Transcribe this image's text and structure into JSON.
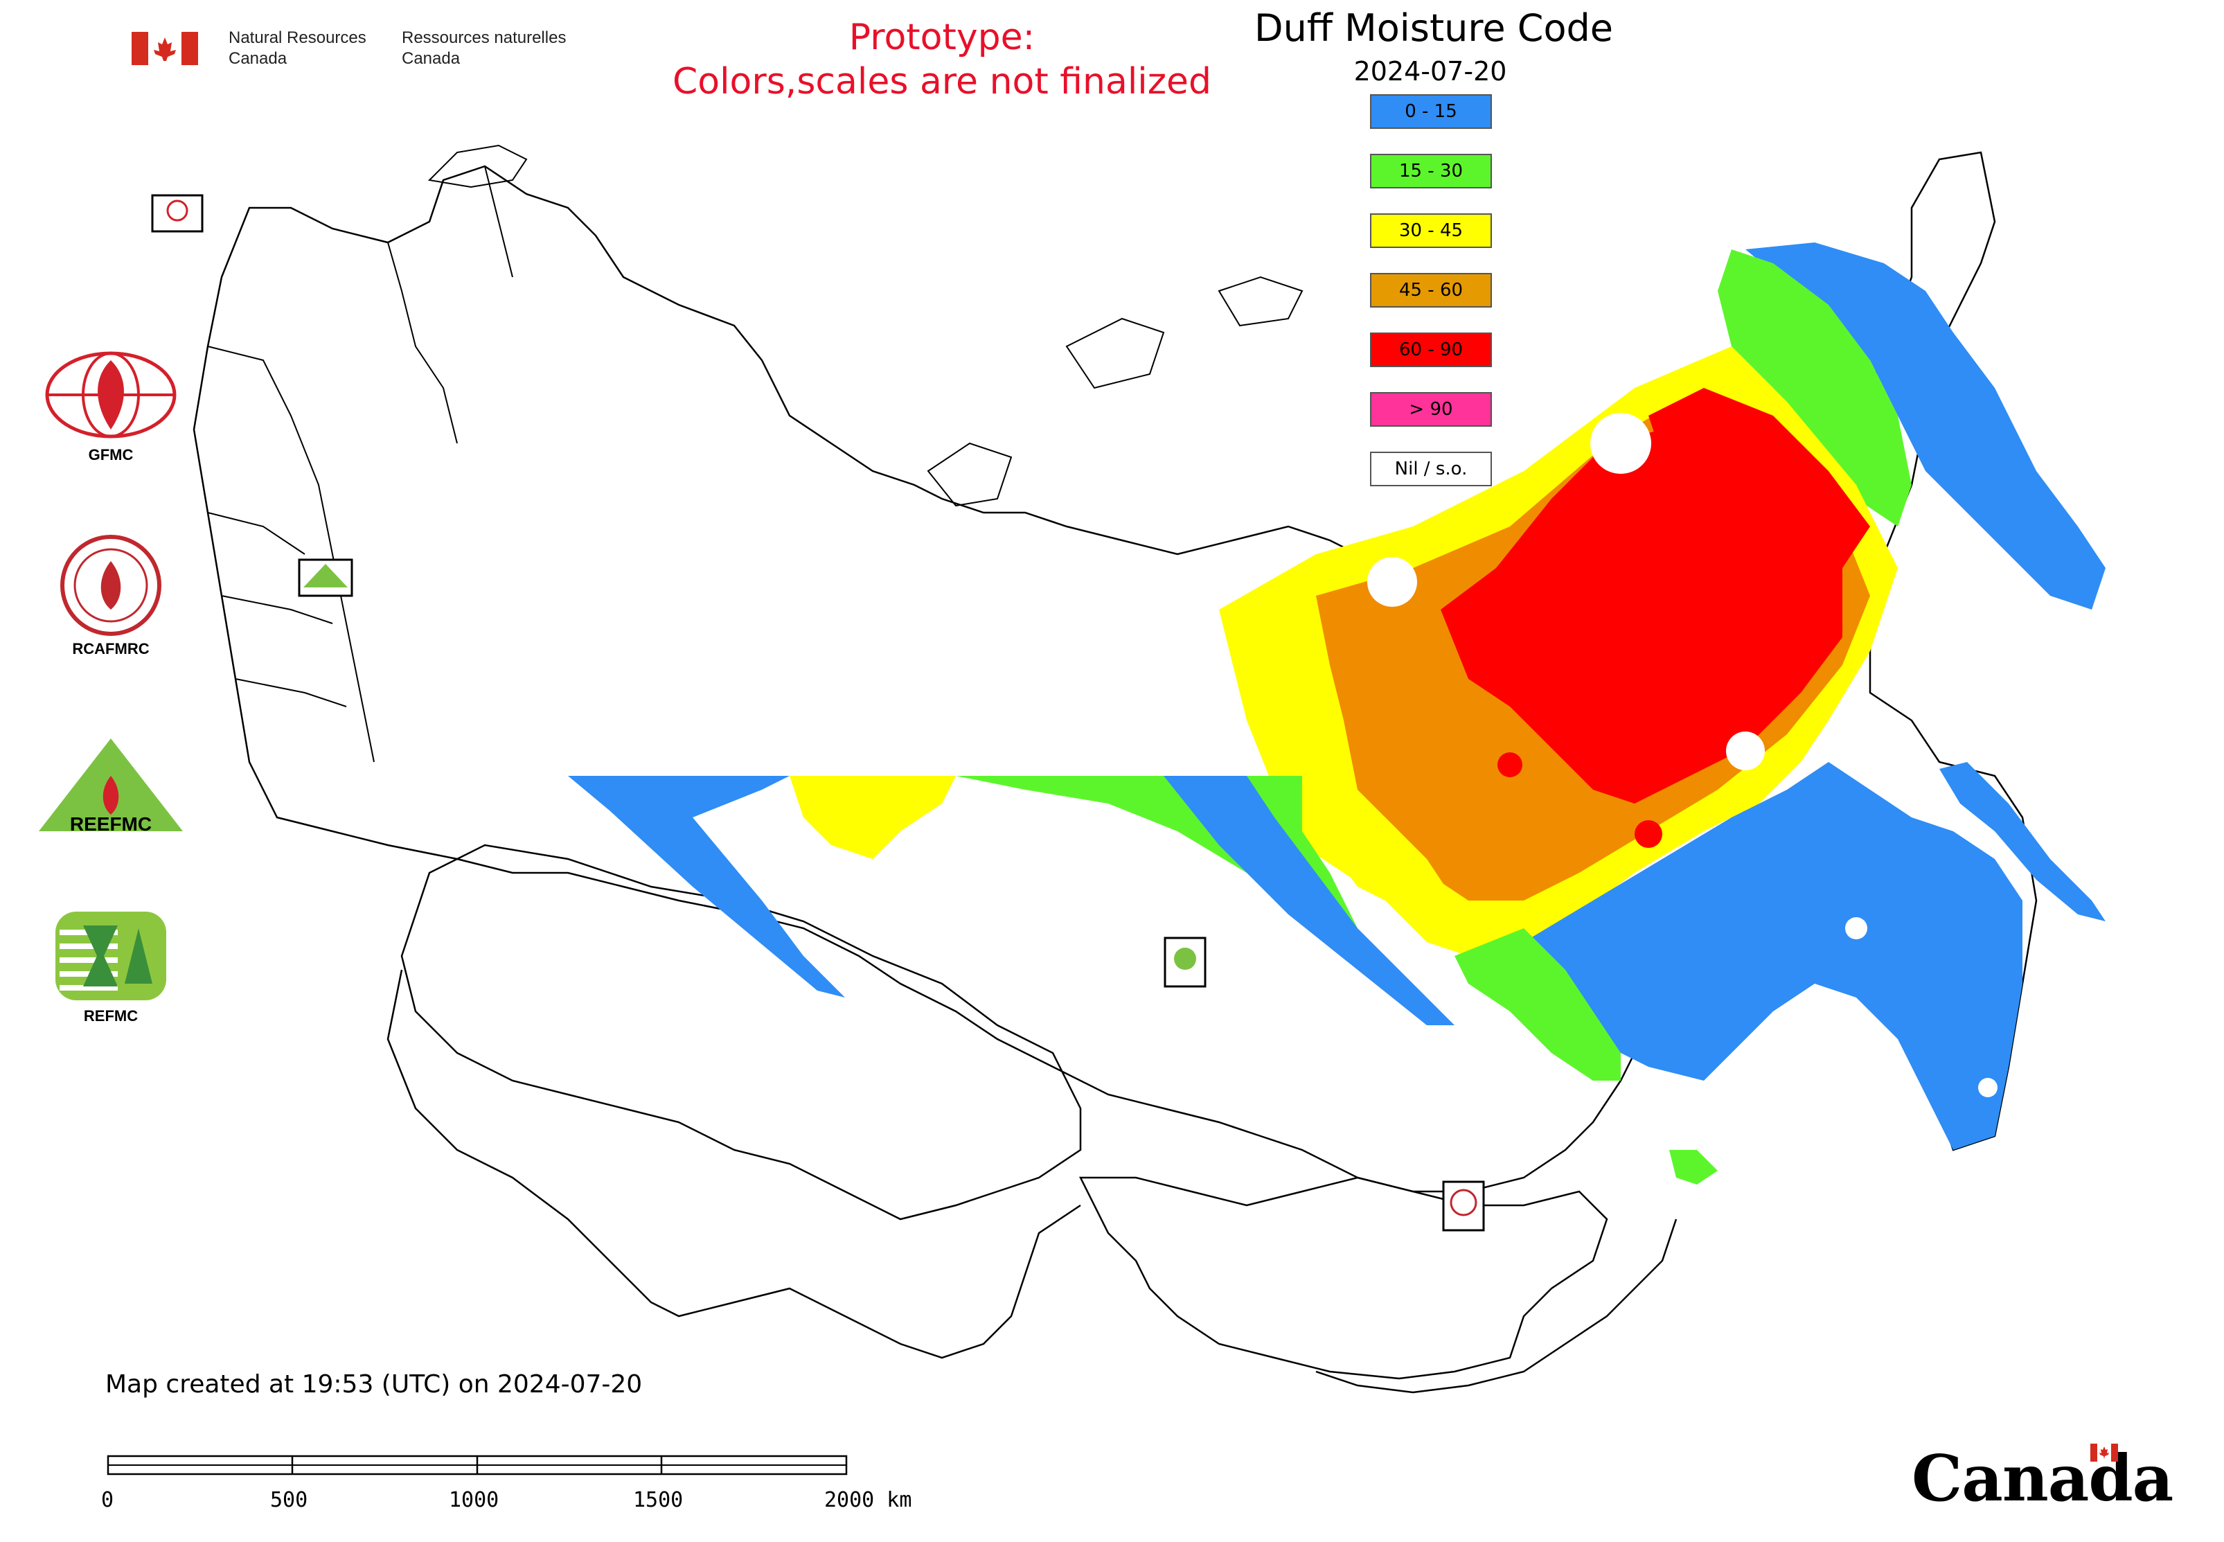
{
  "header": {
    "dept_en_line1": "Natural Resources",
    "dept_en_line2": "Canada",
    "dept_fr_line1": "Ressources naturelles",
    "dept_fr_line2": "Canada",
    "prototype_line1": "Prototype:",
    "prototype_line2": "Colors,scales are not finalized"
  },
  "map": {
    "title": "Duff Moisture Code",
    "date": "2024-07-20"
  },
  "legend": {
    "items": [
      {
        "label": "0 - 15",
        "color": "#2f8df5"
      },
      {
        "label": "15 - 30",
        "color": "#5cf52c"
      },
      {
        "label": "30 - 45",
        "color": "#ffff00"
      },
      {
        "label": "45 - 60",
        "color": "#e49a00"
      },
      {
        "label": "60 - 90",
        "color": "#ff0000"
      },
      {
        "label": "> 90",
        "color": "#ff3399"
      },
      {
        "label": "Nil / s.o.",
        "color": "#ffffff"
      }
    ]
  },
  "logos": {
    "gfmc": "GFMC",
    "rcafmrc": "RCAFMRC",
    "reefmc_text": "REEFMC",
    "refmc": "REFMC"
  },
  "footer": {
    "created": "Map created at 19:53 (UTC) on 2024-07-20",
    "scale_labels": [
      "0",
      "500",
      "1000",
      "1500",
      "2000 km"
    ],
    "wordmark": "Canada"
  }
}
